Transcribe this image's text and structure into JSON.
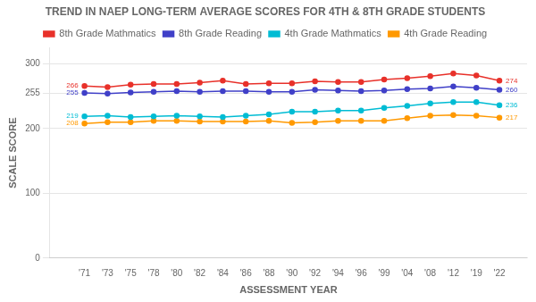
{
  "chart_data": {
    "type": "line",
    "title": "TREND IN NAEP LONG-TERM AVERAGE SCORES FOR 4TH & 8TH GRADE STUDENTS",
    "x_label": "ASSESSMENT YEAR",
    "y_label": "SCALE SCORE",
    "categories": [
      "'71",
      "'73",
      "'75",
      "'78",
      "'80",
      "'82",
      "'84",
      "'86",
      "'88",
      "'90",
      "'92",
      "'94",
      "'96",
      "'99",
      "'04",
      "'08",
      "'12",
      "'19",
      "'22"
    ],
    "series": [
      {
        "name": "8th Grade Mathmatics",
        "color": "#e8312a",
        "values": [
          266,
          264,
          268,
          269,
          269,
          271,
          274,
          269,
          270,
          270,
          273,
          272,
          272,
          276,
          278,
          281,
          285,
          282,
          274
        ]
      },
      {
        "name": "8th Grade Reading",
        "color": "#4040c8",
        "values": [
          255,
          254,
          256,
          257,
          258,
          257,
          258,
          258,
          257,
          257,
          260,
          259,
          258,
          259,
          261,
          262,
          265,
          263,
          260
        ]
      },
      {
        "name": "4th Grade Mathmatics",
        "color": "#00bcd4",
        "values": [
          219,
          220,
          218,
          219,
          220,
          219,
          218,
          220,
          222,
          226,
          226,
          228,
          228,
          232,
          235,
          239,
          241,
          241,
          236
        ]
      },
      {
        "name": "4th Grade Reading",
        "color": "#ff9900",
        "values": [
          208,
          210,
          210,
          212,
          212,
          211,
          211,
          211,
          212,
          209,
          210,
          212,
          212,
          212,
          216,
          220,
          221,
          220,
          217
        ]
      }
    ],
    "annotations": [
      {
        "text": "266",
        "x": "'71",
        "y": 266,
        "color": "#e8312a"
      },
      {
        "text": "274",
        "x": "'22",
        "y": 274,
        "color": "#e8312a"
      },
      {
        "text": "255",
        "x": "'71",
        "y": 255,
        "color": "#4040c8"
      },
      {
        "text": "260",
        "x": "'22",
        "y": 260,
        "color": "#4040c8"
      },
      {
        "text": "219",
        "x": "'71",
        "y": 219,
        "color": "#00bcd4"
      },
      {
        "text": "236",
        "x": "'22",
        "y": 236,
        "color": "#00bcd4"
      },
      {
        "text": "208",
        "x": "'71",
        "y": 208,
        "color": "#ff9900"
      },
      {
        "text": "217",
        "x": "'22",
        "y": 217,
        "color": "#ff9900"
      }
    ],
    "ylim": [
      0,
      325
    ],
    "yticks": [
      0,
      100,
      200,
      255,
      300
    ],
    "grid": true,
    "legend": "top",
    "marker": "circle"
  }
}
